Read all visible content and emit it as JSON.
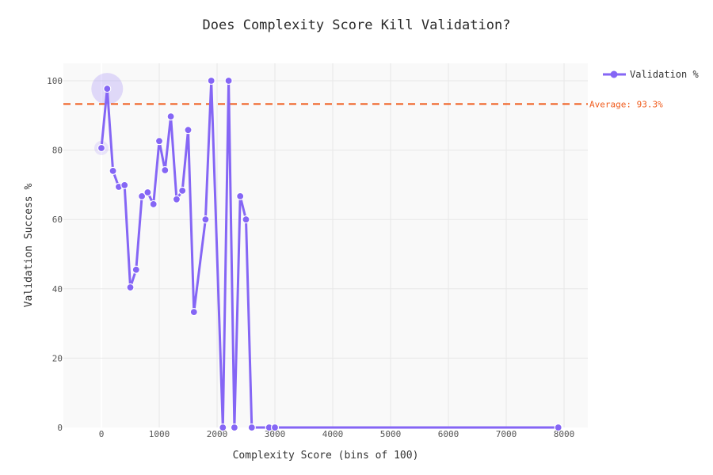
{
  "chart_data": {
    "type": "line",
    "title": "Does Complexity Score Kill Validation?",
    "xlabel": "Complexity Score (bins of 100)",
    "ylabel": "Validation Success %",
    "xlim": [
      -650,
      8450
    ],
    "ylim": [
      0,
      105
    ],
    "x_ticks": [
      0,
      1000,
      2000,
      3000,
      4000,
      5000,
      6000,
      7000,
      8000
    ],
    "y_ticks": [
      0,
      20,
      40,
      60,
      80,
      100
    ],
    "grid": true,
    "legend_position": "top-right",
    "series": [
      {
        "name": "Validation %",
        "color": "#8566f5",
        "x": [
          0,
          100,
          200,
          300,
          400,
          500,
          600,
          700,
          800,
          900,
          1000,
          1100,
          1200,
          1300,
          1400,
          1500,
          1600,
          1800,
          1900,
          2100,
          2200,
          2300,
          2400,
          2500,
          2600,
          2900,
          3000,
          7900
        ],
        "values": [
          80.6,
          97.7,
          74.0,
          69.4,
          69.9,
          40.4,
          45.5,
          66.7,
          67.8,
          64.4,
          82.6,
          74.2,
          89.7,
          65.8,
          68.3,
          85.8,
          33.3,
          60.0,
          100.0,
          0.0,
          100.0,
          0.0,
          66.7,
          60.0,
          0.0,
          0.0,
          0.0,
          0.0
        ]
      }
    ],
    "reference_line": {
      "label": "Average: 93.3%",
      "value": 93.3,
      "color": "#f05a1a",
      "style": "dashed"
    },
    "highlights": [
      {
        "x": 100,
        "y": 97.7,
        "size": "large"
      },
      {
        "x": 0,
        "y": 80.6,
        "size": "small"
      }
    ]
  },
  "legend": {
    "label": "Validation %"
  }
}
